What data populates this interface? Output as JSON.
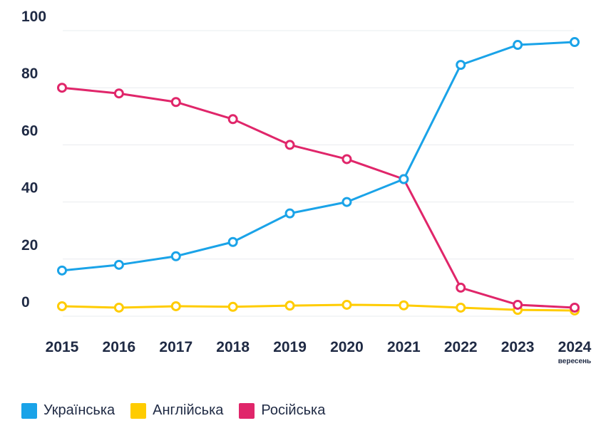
{
  "chart_data": {
    "type": "line",
    "categories": [
      "2015",
      "2016",
      "2017",
      "2018",
      "2019",
      "2020",
      "2021",
      "2022",
      "2023",
      "2024"
    ],
    "category_sublabels": [
      "",
      "",
      "",
      "",
      "",
      "",
      "",
      "",
      "",
      "вересень"
    ],
    "ylim": [
      0,
      100
    ],
    "yticks": [
      0,
      20,
      40,
      60,
      80,
      100
    ],
    "grid": true,
    "legend_position": "bottom-left",
    "series": [
      {
        "name": "Українська",
        "color": "#1aa3e8",
        "values": [
          16,
          18,
          21,
          26,
          36,
          40,
          48,
          88,
          95,
          96
        ]
      },
      {
        "name": "Англійська",
        "color": "#ffcc00",
        "values": [
          3.5,
          3,
          3.5,
          3.3,
          3.7,
          4,
          3.8,
          3,
          2.2,
          2
        ]
      },
      {
        "name": "Російська",
        "color": "#e0266a",
        "values": [
          80,
          78,
          75,
          69,
          60,
          55,
          48,
          10,
          4,
          3
        ]
      }
    ]
  }
}
